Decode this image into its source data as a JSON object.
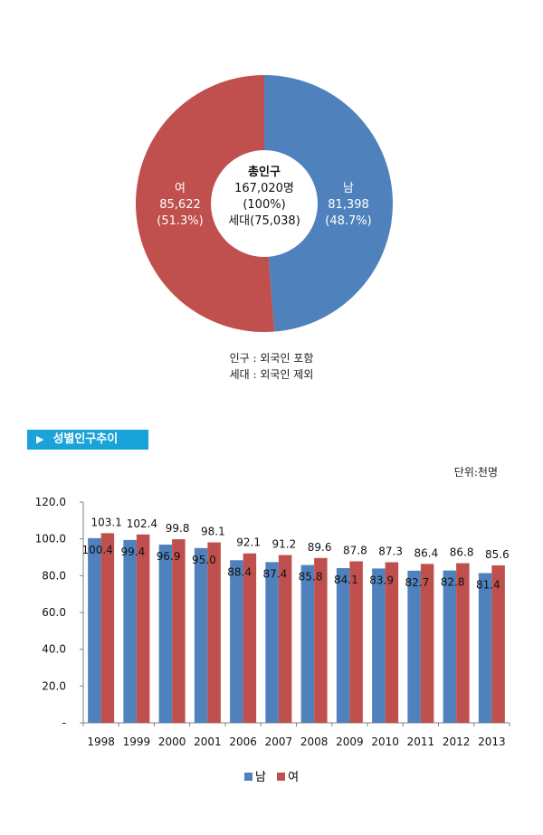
{
  "chart_data": [
    {
      "type": "pie",
      "slices": [
        {
          "name": "남",
          "value": 81398,
          "percent": "(48.7%)",
          "value_label": "81,398",
          "color": "#4f81bd"
        },
        {
          "name": "여",
          "value": 85622,
          "percent": "(51.3%)",
          "value_label": "85,622",
          "color": "#c0504d"
        }
      ],
      "center_lines": [
        "총인구",
        "167,020명",
        "(100%)",
        "세대(75,038)"
      ],
      "notes": [
        "인구 : 외국인 포함",
        "세대 : 외국인 제외"
      ]
    },
    {
      "type": "bar",
      "title": "성별인구추이",
      "unit": "단위:천명",
      "categories": [
        "1998",
        "1999",
        "2000",
        "2001",
        "2006",
        "2007",
        "2008",
        "2009",
        "2010",
        "2011",
        "2012",
        "2013"
      ],
      "series": [
        {
          "name": "남",
          "color": "#4f81bd",
          "values": [
            100.4,
            99.4,
            96.9,
            95.0,
            88.4,
            87.4,
            85.8,
            84.1,
            83.9,
            82.7,
            82.8,
            81.4
          ]
        },
        {
          "name": "여",
          "color": "#c0504d",
          "values": [
            103.1,
            102.4,
            99.8,
            98.1,
            92.1,
            91.2,
            89.6,
            87.8,
            87.3,
            86.4,
            86.8,
            85.6
          ]
        }
      ],
      "yticks": [
        "-",
        "20.0",
        "40.0",
        "60.0",
        "80.0",
        "100.0",
        "120.0"
      ],
      "ylim": [
        0,
        120
      ],
      "legend": "bottom"
    }
  ]
}
